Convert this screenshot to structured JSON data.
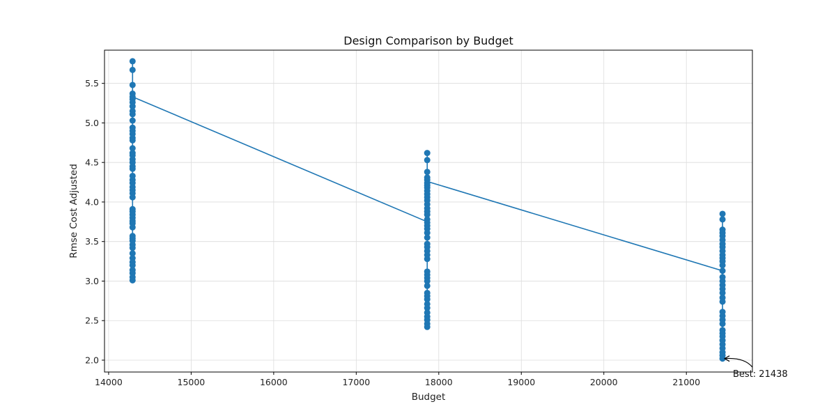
{
  "chart_data": {
    "type": "line",
    "title": "Design Comparison by Budget",
    "xlabel": "Budget",
    "ylabel": "Rmse Cost Adjusted",
    "xlim": [
      13950,
      21800
    ],
    "ylim": [
      1.85,
      5.92
    ],
    "x_ticks": [
      14000,
      15000,
      16000,
      17000,
      18000,
      19000,
      20000,
      21000
    ],
    "y_ticks": [
      2.0,
      2.5,
      3.0,
      3.5,
      4.0,
      4.5,
      5.0,
      5.5
    ],
    "grid": true,
    "color": "#1f77b4",
    "mean_line": {
      "x": [
        14290,
        17860,
        17860,
        21438
      ],
      "y": [
        5.33,
        3.75,
        4.26,
        3.13
      ]
    },
    "series": [
      {
        "x": 14290,
        "values": [
          5.78,
          5.67,
          5.48,
          5.37,
          5.33,
          5.3,
          5.26,
          5.21,
          5.15,
          5.11,
          5.03,
          4.94,
          4.9,
          4.86,
          4.81,
          4.78,
          4.68,
          4.62,
          4.59,
          4.54,
          4.5,
          4.45,
          4.42,
          4.33,
          4.28,
          4.24,
          4.19,
          4.15,
          4.11,
          4.06,
          3.91,
          3.88,
          3.84,
          3.8,
          3.76,
          3.73,
          3.68,
          3.57,
          3.54,
          3.51,
          3.46,
          3.42,
          3.35,
          3.29,
          3.24,
          3.2,
          3.14,
          3.1,
          3.05,
          3.01
        ]
      },
      {
        "x": 17860,
        "values": [
          4.62,
          4.53,
          4.38,
          4.31,
          4.28,
          4.24,
          4.21,
          4.18,
          4.14,
          4.1,
          4.06,
          4.02,
          3.97,
          3.92,
          3.88,
          3.84,
          3.78,
          3.74,
          3.7,
          3.66,
          3.61,
          3.55,
          3.47,
          3.43,
          3.38,
          3.33,
          3.28,
          3.12,
          3.08,
          3.04,
          3.0,
          2.94,
          2.85,
          2.81,
          2.77,
          2.71,
          2.66,
          2.6,
          2.55,
          2.51,
          2.46,
          2.42
        ]
      },
      {
        "x": 21438,
        "values": [
          3.85,
          3.78,
          3.65,
          3.61,
          3.57,
          3.52,
          3.47,
          3.43,
          3.38,
          3.33,
          3.29,
          3.25,
          3.2,
          3.13,
          3.05,
          3.0,
          2.95,
          2.9,
          2.85,
          2.79,
          2.74,
          2.61,
          2.56,
          2.51,
          2.46,
          2.38,
          2.34,
          2.3,
          2.25,
          2.2,
          2.15,
          2.1,
          2.06,
          2.02
        ]
      }
    ],
    "annotation": {
      "text": "Best: 21438",
      "point": [
        21438,
        2.02
      ]
    }
  }
}
